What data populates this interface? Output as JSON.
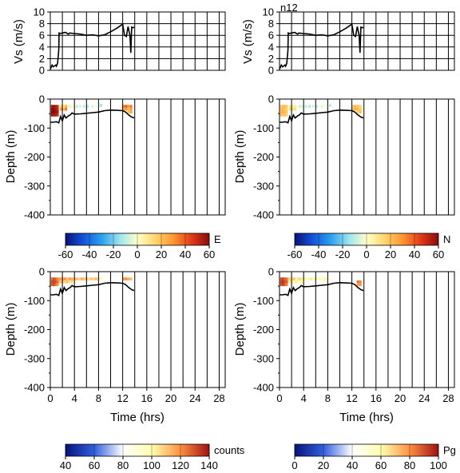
{
  "chart_data": [
    {
      "id": "vs-left",
      "type": "line",
      "ylabel": "Vs (m/s)",
      "ylim": [
        0,
        10
      ],
      "yticks": [
        0,
        2,
        4,
        6,
        8,
        10
      ],
      "xlim": [
        0,
        29
      ],
      "x": [
        0,
        0.3,
        0.5,
        0.9,
        1.0,
        1.2,
        1.4,
        1.45,
        1.6,
        2.0,
        2.5,
        3.0,
        3.2,
        4.0,
        5.0,
        6.0,
        7.0,
        8.0,
        9.0,
        10.0,
        11.0,
        12.0,
        12.3,
        12.6,
        12.9,
        13.2,
        13.35,
        13.5,
        13.7,
        13.9
      ],
      "y": [
        0.2,
        0.9,
        0.6,
        0.9,
        0.7,
        1.2,
        3.5,
        6.4,
        6.3,
        6.4,
        6.5,
        6.2,
        6.4,
        6.3,
        6.2,
        6.0,
        6.1,
        5.9,
        6.1,
        6.6,
        7.2,
        7.9,
        6.0,
        5.8,
        7.5,
        6.0,
        3.0,
        7.4,
        7.3,
        7.4
      ]
    },
    {
      "id": "vs-right",
      "type": "line",
      "title": "n12",
      "ylabel": "Vs (m/s)",
      "ylim": [
        0,
        10
      ],
      "yticks": [
        0,
        2,
        4,
        6,
        8,
        10
      ],
      "xlim": [
        0,
        29
      ],
      "x": [
        0,
        0.3,
        0.5,
        0.9,
        1.0,
        1.2,
        1.4,
        1.45,
        1.6,
        2.0,
        2.5,
        3.0,
        3.2,
        4.0,
        5.0,
        6.0,
        7.0,
        8.0,
        9.0,
        10.0,
        11.0,
        12.0,
        12.3,
        12.6,
        12.9,
        13.2,
        13.35,
        13.5,
        13.7,
        13.9
      ],
      "y": [
        0.2,
        0.9,
        0.6,
        0.9,
        0.7,
        1.2,
        3.5,
        6.4,
        6.3,
        6.4,
        6.5,
        6.2,
        6.4,
        6.3,
        6.2,
        6.0,
        6.1,
        5.9,
        6.1,
        6.6,
        7.2,
        7.9,
        6.0,
        5.8,
        7.5,
        6.0,
        3.0,
        7.4,
        7.3,
        7.4
      ]
    },
    {
      "id": "depth-E",
      "type": "heatmap",
      "ylabel": "Depth (m)",
      "ylim": [
        -400,
        0
      ],
      "yticks": [
        0,
        -100,
        -200,
        -300,
        -400
      ],
      "xlim": [
        0,
        29
      ],
      "colorbar": {
        "label": "E",
        "ticks": [
          -60,
          -40,
          -20,
          0,
          20,
          40,
          60
        ],
        "range": [
          -60,
          60
        ],
        "colormap": "blue-white-red"
      },
      "bottom_x": [
        0,
        0.5,
        1.0,
        1.4,
        1.7,
        2.0,
        2.3,
        2.6,
        3.0,
        3.3,
        3.6,
        4.0,
        5.0,
        6.0,
        7.0,
        8.0,
        9.0,
        10.0,
        11.0,
        12.0,
        12.5,
        13.0,
        13.5,
        13.9
      ],
      "bottom_y": [
        -80,
        -80,
        -78,
        -82,
        -60,
        -75,
        -55,
        -65,
        -58,
        -55,
        -48,
        -52,
        -51,
        -49,
        -47,
        -45,
        -40,
        -38,
        -39,
        -40,
        -45,
        -55,
        -62,
        -65
      ],
      "cells": {
        "x": [
          0.3,
          0.6,
          0.9,
          1.2,
          0.3,
          0.6,
          0.9,
          1.2,
          0.3,
          0.6,
          0.9,
          1.2,
          0.3,
          0.6,
          0.9,
          1.2,
          1.8,
          2.2,
          1.8,
          2.2,
          2.6,
          2.6,
          3.0,
          3.4,
          3.8,
          4.4,
          5.0,
          5.6,
          6.2,
          7.0,
          7.6,
          8.4,
          12.2,
          12.6,
          13.0,
          13.4,
          12.2,
          12.6,
          13.0,
          13.4,
          13.0,
          13.4
        ],
        "y": [
          -25,
          -25,
          -25,
          -25,
          -35,
          -35,
          -35,
          -35,
          -45,
          -45,
          -45,
          -45,
          -55,
          -55,
          -55,
          -55,
          -25,
          -25,
          -35,
          -35,
          -25,
          -35,
          -25,
          -25,
          -25,
          -25,
          -25,
          -25,
          -25,
          -25,
          -25,
          -22,
          -25,
          -25,
          -25,
          -25,
          -35,
          -35,
          -35,
          -35,
          -45,
          -45
        ],
        "v": [
          55,
          58,
          55,
          50,
          58,
          60,
          55,
          52,
          60,
          60,
          58,
          55,
          58,
          55,
          55,
          50,
          15,
          10,
          30,
          20,
          25,
          35,
          5,
          -5,
          2,
          -10,
          -5,
          -8,
          -12,
          -5,
          0,
          -15,
          35,
          40,
          30,
          35,
          25,
          30,
          20,
          28,
          20,
          25
        ]
      }
    },
    {
      "id": "depth-N",
      "type": "heatmap",
      "ylabel": "Depth (m)",
      "ylim": [
        -400,
        0
      ],
      "yticks": [
        0,
        -100,
        -200,
        -300,
        -400
      ],
      "xlim": [
        0,
        29
      ],
      "colorbar": {
        "label": "N",
        "ticks": [
          -60,
          -40,
          -20,
          0,
          20,
          40,
          60
        ],
        "range": [
          -60,
          60
        ],
        "colormap": "blue-white-red"
      },
      "bottom_x": [
        0,
        0.5,
        1.0,
        1.4,
        1.7,
        2.0,
        2.3,
        2.6,
        3.0,
        3.3,
        3.6,
        4.0,
        5.0,
        6.0,
        7.0,
        8.0,
        9.0,
        10.0,
        11.0,
        12.0,
        12.5,
        13.0,
        13.5,
        13.9
      ],
      "bottom_y": [
        -80,
        -80,
        -78,
        -82,
        -60,
        -75,
        -55,
        -65,
        -58,
        -55,
        -48,
        -52,
        -51,
        -49,
        -47,
        -45,
        -40,
        -38,
        -39,
        -40,
        -45,
        -55,
        -62,
        -65
      ],
      "cells": {
        "x": [
          0.3,
          0.6,
          0.9,
          1.2,
          0.3,
          0.6,
          0.9,
          1.2,
          0.3,
          0.6,
          0.9,
          1.2,
          0.3,
          0.6,
          0.9,
          1.2,
          1.8,
          2.2,
          1.8,
          2.2,
          2.6,
          2.6,
          3.0,
          3.4,
          3.8,
          4.4,
          5.0,
          5.6,
          6.2,
          7.0,
          7.6,
          8.4,
          12.2,
          12.6,
          13.0,
          13.4,
          12.2,
          12.6,
          13.0,
          13.4,
          13.0,
          13.4
        ],
        "y": [
          -25,
          -25,
          -25,
          -25,
          -35,
          -35,
          -35,
          -35,
          -45,
          -45,
          -45,
          -45,
          -55,
          -55,
          -55,
          -55,
          -25,
          -25,
          -35,
          -35,
          -25,
          -35,
          -25,
          -25,
          -25,
          -25,
          -25,
          -25,
          -25,
          -25,
          -25,
          -22,
          -25,
          -25,
          -25,
          -25,
          -35,
          -35,
          -35,
          -35,
          -45,
          -45
        ],
        "v": [
          18,
          20,
          22,
          18,
          20,
          22,
          20,
          15,
          22,
          25,
          20,
          18,
          20,
          18,
          20,
          15,
          10,
          5,
          15,
          10,
          8,
          12,
          0,
          -8,
          -5,
          -10,
          -12,
          -6,
          -10,
          -4,
          0,
          -12,
          18,
          22,
          20,
          15,
          20,
          25,
          22,
          18,
          15,
          20
        ]
      }
    },
    {
      "id": "depth-counts",
      "type": "heatmap",
      "ylabel": "Depth (m)",
      "xlabel": "Time (hrs)",
      "ylim": [
        -400,
        0
      ],
      "yticks": [
        0,
        -100,
        -200,
        -300,
        -400
      ],
      "xlim": [
        0,
        29
      ],
      "xticks": [
        0,
        4,
        8,
        12,
        16,
        20,
        24,
        28
      ],
      "colorbar": {
        "label": "counts",
        "ticks": [
          40,
          60,
          80,
          100,
          120,
          140
        ],
        "range": [
          40,
          140
        ],
        "colormap": "blue-white-red"
      },
      "bottom_x": [
        0,
        0.5,
        1.0,
        1.4,
        1.7,
        2.0,
        2.3,
        2.6,
        3.0,
        3.3,
        3.6,
        4.0,
        5.0,
        6.0,
        7.0,
        8.0,
        9.0,
        10.0,
        11.0,
        12.0,
        12.5,
        13.0,
        13.5,
        13.9
      ],
      "bottom_y": [
        -80,
        -80,
        -78,
        -82,
        -60,
        -75,
        -55,
        -65,
        -58,
        -55,
        -48,
        -52,
        -51,
        -49,
        -47,
        -45,
        -40,
        -38,
        -39,
        -40,
        -45,
        -55,
        -62,
        -65
      ],
      "cells": {
        "x": [
          0.3,
          0.6,
          0.9,
          1.2,
          0.3,
          0.6,
          0.9,
          1.2,
          0.3,
          0.6,
          0.9,
          1.2,
          1.6,
          2.0,
          2.4,
          2.8,
          3.2,
          3.6,
          4.0,
          4.4,
          4.8,
          5.2,
          5.6,
          6.0,
          6.4,
          6.8,
          7.2,
          7.6,
          8.0,
          8.5,
          1.6,
          2.0,
          2.4,
          2.8,
          3.2,
          3.6,
          4.0,
          12.2,
          12.6,
          13.0,
          13.4
        ],
        "y": [
          -25,
          -25,
          -25,
          -25,
          -35,
          -35,
          -35,
          -35,
          -45,
          -45,
          -45,
          -45,
          -25,
          -25,
          -25,
          -25,
          -25,
          -25,
          -25,
          -25,
          -25,
          -25,
          -25,
          -25,
          -25,
          -25,
          -25,
          -25,
          -25,
          -25,
          -35,
          -35,
          -35,
          -35,
          -35,
          -35,
          -35,
          -25,
          -25,
          -25,
          -25
        ],
        "v": [
          125,
          130,
          128,
          122,
          130,
          132,
          130,
          125,
          128,
          130,
          126,
          120,
          118,
          115,
          120,
          112,
          118,
          115,
          110,
          112,
          108,
          115,
          110,
          112,
          105,
          110,
          108,
          112,
          105,
          100,
          112,
          110,
          108,
          112,
          105,
          108,
          100,
          118,
          120,
          115,
          112
        ]
      }
    },
    {
      "id": "depth-Pg",
      "type": "heatmap",
      "ylabel": "Depth (m)",
      "xlabel": "Time (hrs)",
      "ylim": [
        -400,
        0
      ],
      "yticks": [
        0,
        -100,
        -200,
        -300,
        -400
      ],
      "xlim": [
        0,
        29
      ],
      "xticks": [
        0,
        4,
        8,
        12,
        16,
        20,
        24,
        28
      ],
      "colorbar": {
        "label": "Pg",
        "ticks": [
          0,
          20,
          40,
          60,
          80,
          100
        ],
        "range": [
          0,
          100
        ],
        "colormap": "blue-white-red"
      },
      "bottom_x": [
        0,
        0.5,
        1.0,
        1.4,
        1.7,
        2.0,
        2.3,
        2.6,
        3.0,
        3.3,
        3.6,
        4.0,
        5.0,
        6.0,
        7.0,
        8.0,
        9.0,
        10.0,
        11.0,
        12.0,
        12.5,
        13.0,
        13.5,
        13.9
      ],
      "bottom_y": [
        -80,
        -80,
        -78,
        -82,
        -60,
        -75,
        -55,
        -65,
        -58,
        -55,
        -48,
        -52,
        -51,
        -49,
        -47,
        -45,
        -40,
        -38,
        -39,
        -40,
        -45,
        -55,
        -62,
        -65
      ],
      "cells": {
        "x": [
          0.3,
          0.6,
          0.9,
          1.2,
          0.3,
          0.6,
          0.9,
          1.2,
          0.3,
          0.6,
          0.9,
          1.2,
          1.6,
          2.0,
          2.4,
          2.8,
          3.2,
          3.6,
          4.0,
          4.4,
          4.8,
          5.2,
          5.6,
          6.0,
          6.4,
          6.8,
          7.2,
          7.6,
          8.0,
          8.5,
          1.6,
          2.0,
          2.4,
          2.8,
          3.2,
          3.6,
          4.0,
          13.0,
          13.4,
          13.0,
          13.4
        ],
        "y": [
          -25,
          -25,
          -25,
          -25,
          -35,
          -35,
          -35,
          -35,
          -45,
          -45,
          -45,
          -45,
          -25,
          -25,
          -25,
          -25,
          -25,
          -25,
          -25,
          -25,
          -25,
          -25,
          -25,
          -25,
          -25,
          -25,
          -25,
          -25,
          -25,
          -25,
          -35,
          -35,
          -35,
          -35,
          -35,
          -35,
          -35,
          -35,
          -35,
          -45,
          -45
        ],
        "v": [
          90,
          92,
          88,
          85,
          92,
          95,
          90,
          88,
          90,
          92,
          88,
          82,
          70,
          65,
          72,
          62,
          68,
          65,
          60,
          62,
          58,
          64,
          60,
          62,
          56,
          60,
          58,
          62,
          55,
          52,
          65,
          62,
          60,
          64,
          58,
          60,
          55,
          85,
          82,
          78,
          80
        ]
      }
    }
  ]
}
